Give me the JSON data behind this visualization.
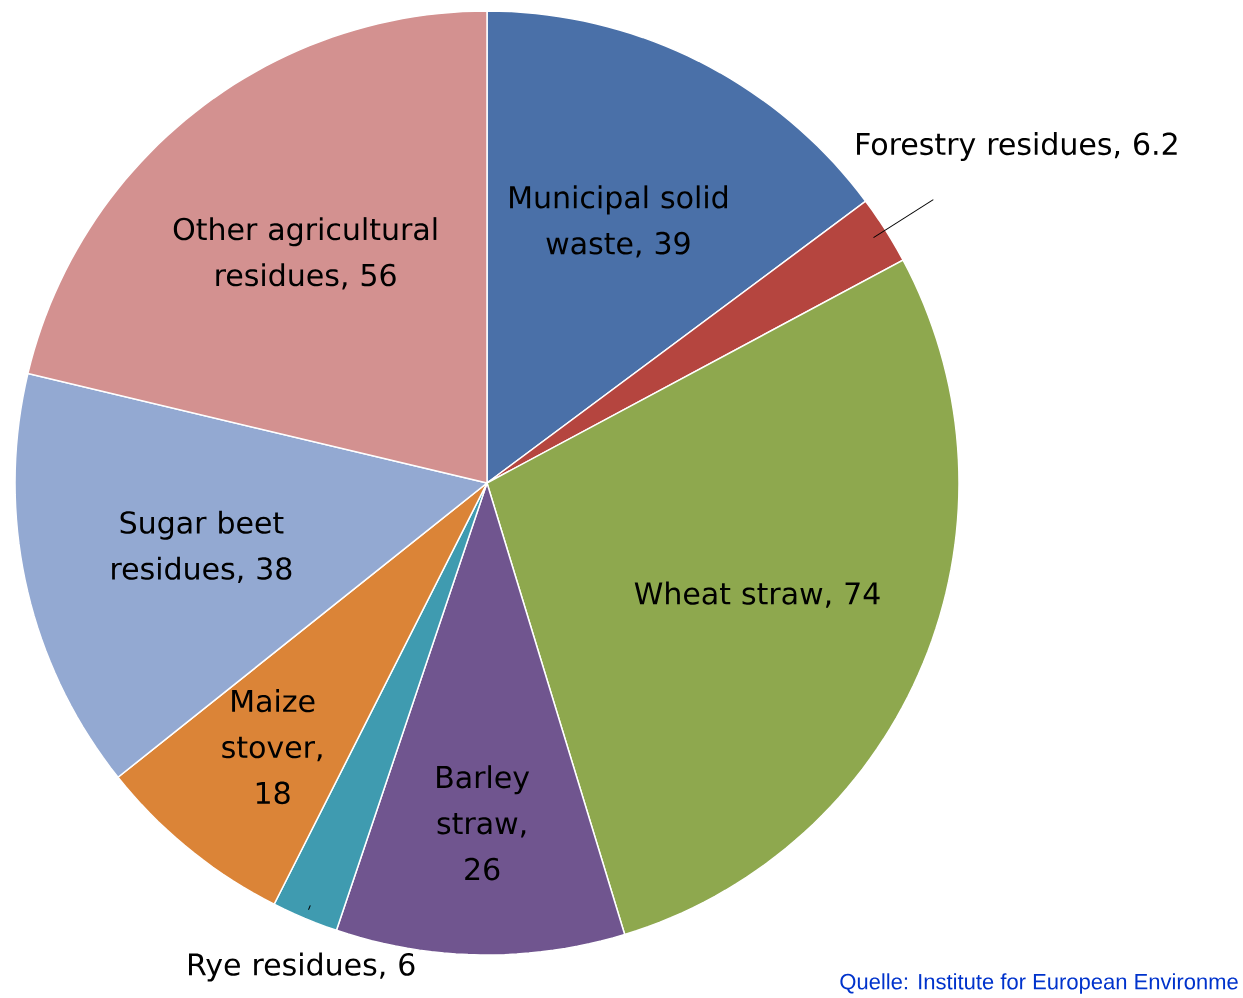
{
  "chart_data": {
    "type": "pie",
    "categories": [
      "Municipal solid waste, 39",
      "Forestry residues, 6.2",
      "Wheat straw, 74",
      "Barley straw, 26",
      "Rye residues, 6",
      "Maize stover, 18",
      "Sugar beet residues, 38",
      "Other agricultural residues, 56"
    ],
    "values": [
      39,
      6.2,
      74,
      26,
      6,
      18,
      38,
      56
    ],
    "colors": [
      "#4a70a8",
      "#b5453f",
      "#8ea84e",
      "#70558f",
      "#3f9bb0",
      "#db8437",
      "#93a9d2",
      "#d39190"
    ],
    "annotations": [
      "Quelle: Institute for European Environme"
    ]
  }
}
